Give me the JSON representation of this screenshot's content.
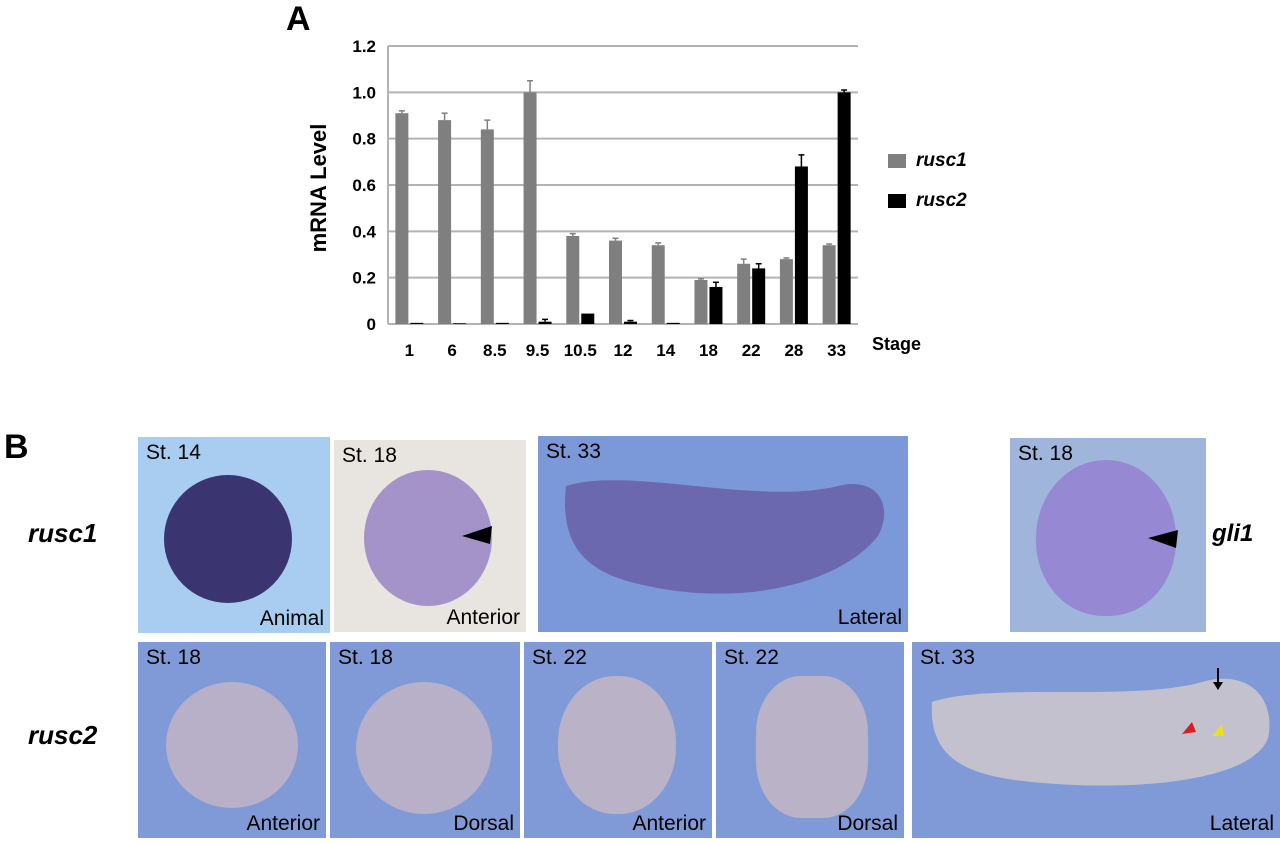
{
  "panels": {
    "a_letter": "A",
    "b_letter": "B"
  },
  "chart_data": {
    "type": "bar",
    "ylabel": "mRNA Level",
    "xlabel": "Stage",
    "ylim": [
      0,
      1.2
    ],
    "yticks": [
      "0",
      "0.2",
      "0.4",
      "0.6",
      "0.8",
      "1.0",
      "1.2"
    ],
    "grid": true,
    "legend_position": "right",
    "categories": [
      "1",
      "6",
      "8.5",
      "9.5",
      "10.5",
      "12",
      "14",
      "18",
      "22",
      "28",
      "33"
    ],
    "series": [
      {
        "name": "rusc1",
        "color": "#7f7f7f",
        "values": [
          0.91,
          0.88,
          0.84,
          1.0,
          0.38,
          0.36,
          0.34,
          0.19,
          0.26,
          0.28,
          0.34
        ],
        "errors": [
          0.01,
          0.03,
          0.04,
          0.05,
          0.01,
          0.01,
          0.01,
          0.005,
          0.02,
          0.005,
          0.005
        ]
      },
      {
        "name": "rusc2",
        "color": "#000000",
        "values": [
          0.005,
          0.003,
          0.005,
          0.01,
          0.045,
          0.01,
          0.005,
          0.16,
          0.24,
          0.68,
          1.0
        ],
        "errors": [
          0.0,
          0.0,
          0.0,
          0.01,
          0.0,
          0.005,
          0.0,
          0.02,
          0.02,
          0.05,
          0.01
        ]
      }
    ]
  },
  "rows": {
    "rusc1_label": "rusc1",
    "rusc2_label": "rusc2",
    "gli1_label": "gli1"
  },
  "tiles": [
    {
      "stage": "St. 14",
      "view": "Animal",
      "bg": "#a9cdf0",
      "embryo": "#3a3470"
    },
    {
      "stage": "St. 18",
      "view": "Anterior",
      "bg": "#e8e4e0",
      "embryo": "#a493c9"
    },
    {
      "stage": "St. 33",
      "view": "Lateral",
      "bg": "#7b98d8",
      "embryo": "#6a5fa8"
    },
    {
      "stage": "St. 18",
      "view": "",
      "bg": "#9fb5dc",
      "embryo": "#9788d4"
    },
    {
      "stage": "St. 18",
      "view": "Anterior",
      "bg": "#7f9ad6",
      "embryo": "#b7b0c8"
    },
    {
      "stage": "St. 18",
      "view": "Dorsal",
      "bg": "#7f9ad6",
      "embryo": "#b7b0c8"
    },
    {
      "stage": "St. 22",
      "view": "Anterior",
      "bg": "#7f9ad6",
      "embryo": "#bab2c6"
    },
    {
      "stage": "St. 22",
      "view": "Dorsal",
      "bg": "#7f9ad6",
      "embryo": "#bab2c6"
    },
    {
      "stage": "St. 33",
      "view": "Lateral",
      "bg": "#7f9ad6",
      "embryo": "#c8c3cf"
    }
  ]
}
